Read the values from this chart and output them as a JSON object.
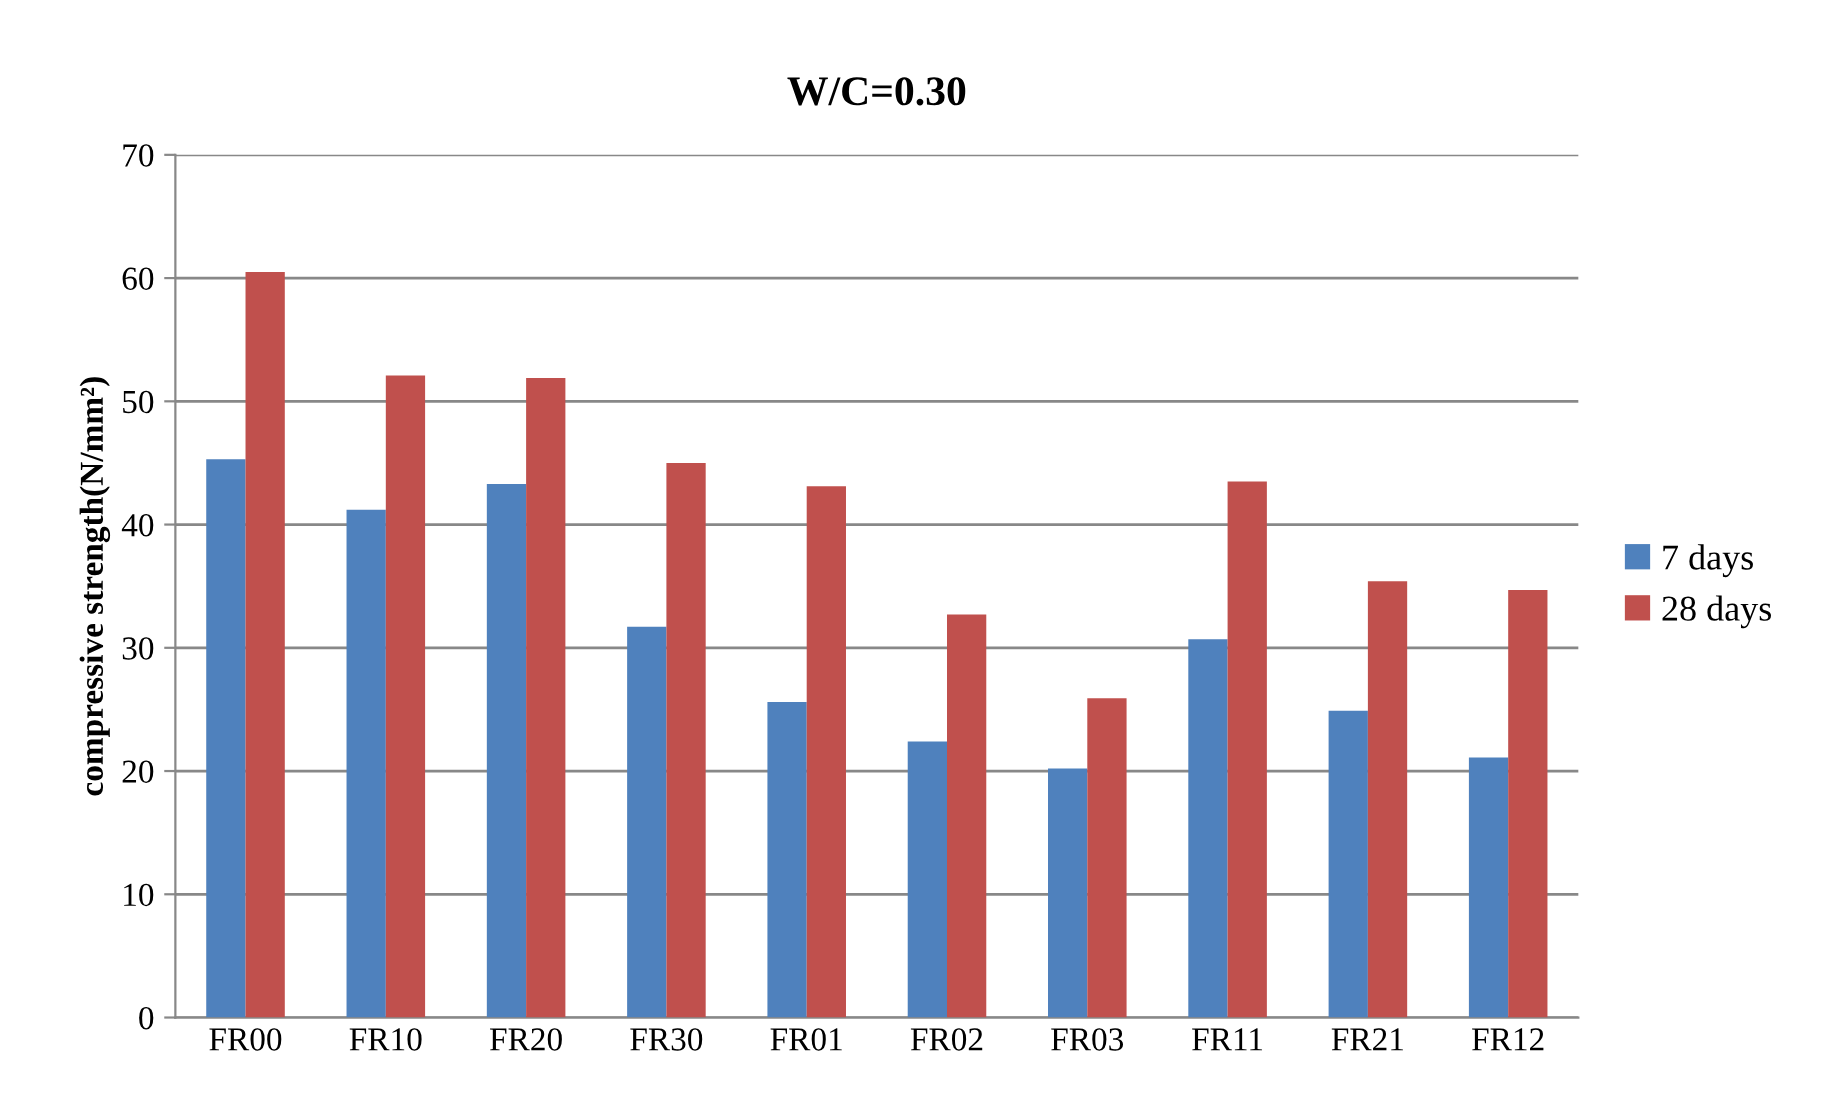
{
  "chart_data": {
    "type": "bar",
    "title": "W/C=0.30",
    "ylabel": "compressive strength(N/mm²)",
    "categories": [
      "FR00",
      "FR10",
      "FR20",
      "FR30",
      "FR01",
      "FR02",
      "FR03",
      "FR11",
      "FR21",
      "FR12"
    ],
    "series": [
      {
        "name": "7 days",
        "color": "#4f81bd",
        "values": [
          45.3,
          41.2,
          43.3,
          31.7,
          25.6,
          22.4,
          20.2,
          30.7,
          24.9,
          21.1
        ]
      },
      {
        "name": "28 days",
        "color": "#c0504d",
        "values": [
          60.5,
          52.1,
          51.9,
          45.0,
          43.1,
          32.7,
          25.9,
          43.5,
          35.4,
          34.7
        ]
      }
    ],
    "ylim": [
      0,
      70
    ],
    "yticks": [
      0,
      10,
      20,
      30,
      40,
      50,
      60,
      70
    ],
    "grid": "y",
    "legend": "right"
  }
}
